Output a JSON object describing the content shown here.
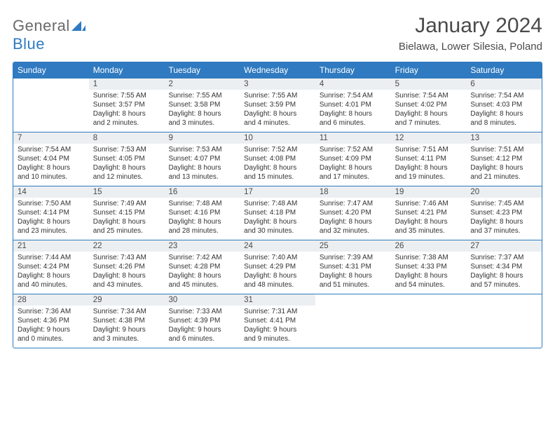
{
  "logo": {
    "word1": "General",
    "word2": "Blue"
  },
  "title": "January 2024",
  "location": "Bielawa, Lower Silesia, Poland",
  "colors": {
    "accent": "#2f7ac0",
    "daybar": "#eceff1",
    "text": "#333333",
    "title": "#4a4a4a",
    "bg": "#ffffff"
  },
  "dow": [
    "Sunday",
    "Monday",
    "Tuesday",
    "Wednesday",
    "Thursday",
    "Friday",
    "Saturday"
  ],
  "weeks": [
    [
      {
        "n": "",
        "lines": [
          "",
          "",
          "",
          ""
        ]
      },
      {
        "n": "1",
        "lines": [
          "Sunrise: 7:55 AM",
          "Sunset: 3:57 PM",
          "Daylight: 8 hours",
          "and 2 minutes."
        ]
      },
      {
        "n": "2",
        "lines": [
          "Sunrise: 7:55 AM",
          "Sunset: 3:58 PM",
          "Daylight: 8 hours",
          "and 3 minutes."
        ]
      },
      {
        "n": "3",
        "lines": [
          "Sunrise: 7:55 AM",
          "Sunset: 3:59 PM",
          "Daylight: 8 hours",
          "and 4 minutes."
        ]
      },
      {
        "n": "4",
        "lines": [
          "Sunrise: 7:54 AM",
          "Sunset: 4:01 PM",
          "Daylight: 8 hours",
          "and 6 minutes."
        ]
      },
      {
        "n": "5",
        "lines": [
          "Sunrise: 7:54 AM",
          "Sunset: 4:02 PM",
          "Daylight: 8 hours",
          "and 7 minutes."
        ]
      },
      {
        "n": "6",
        "lines": [
          "Sunrise: 7:54 AM",
          "Sunset: 4:03 PM",
          "Daylight: 8 hours",
          "and 8 minutes."
        ]
      }
    ],
    [
      {
        "n": "7",
        "lines": [
          "Sunrise: 7:54 AM",
          "Sunset: 4:04 PM",
          "Daylight: 8 hours",
          "and 10 minutes."
        ]
      },
      {
        "n": "8",
        "lines": [
          "Sunrise: 7:53 AM",
          "Sunset: 4:05 PM",
          "Daylight: 8 hours",
          "and 12 minutes."
        ]
      },
      {
        "n": "9",
        "lines": [
          "Sunrise: 7:53 AM",
          "Sunset: 4:07 PM",
          "Daylight: 8 hours",
          "and 13 minutes."
        ]
      },
      {
        "n": "10",
        "lines": [
          "Sunrise: 7:52 AM",
          "Sunset: 4:08 PM",
          "Daylight: 8 hours",
          "and 15 minutes."
        ]
      },
      {
        "n": "11",
        "lines": [
          "Sunrise: 7:52 AM",
          "Sunset: 4:09 PM",
          "Daylight: 8 hours",
          "and 17 minutes."
        ]
      },
      {
        "n": "12",
        "lines": [
          "Sunrise: 7:51 AM",
          "Sunset: 4:11 PM",
          "Daylight: 8 hours",
          "and 19 minutes."
        ]
      },
      {
        "n": "13",
        "lines": [
          "Sunrise: 7:51 AM",
          "Sunset: 4:12 PM",
          "Daylight: 8 hours",
          "and 21 minutes."
        ]
      }
    ],
    [
      {
        "n": "14",
        "lines": [
          "Sunrise: 7:50 AM",
          "Sunset: 4:14 PM",
          "Daylight: 8 hours",
          "and 23 minutes."
        ]
      },
      {
        "n": "15",
        "lines": [
          "Sunrise: 7:49 AM",
          "Sunset: 4:15 PM",
          "Daylight: 8 hours",
          "and 25 minutes."
        ]
      },
      {
        "n": "16",
        "lines": [
          "Sunrise: 7:48 AM",
          "Sunset: 4:16 PM",
          "Daylight: 8 hours",
          "and 28 minutes."
        ]
      },
      {
        "n": "17",
        "lines": [
          "Sunrise: 7:48 AM",
          "Sunset: 4:18 PM",
          "Daylight: 8 hours",
          "and 30 minutes."
        ]
      },
      {
        "n": "18",
        "lines": [
          "Sunrise: 7:47 AM",
          "Sunset: 4:20 PM",
          "Daylight: 8 hours",
          "and 32 minutes."
        ]
      },
      {
        "n": "19",
        "lines": [
          "Sunrise: 7:46 AM",
          "Sunset: 4:21 PM",
          "Daylight: 8 hours",
          "and 35 minutes."
        ]
      },
      {
        "n": "20",
        "lines": [
          "Sunrise: 7:45 AM",
          "Sunset: 4:23 PM",
          "Daylight: 8 hours",
          "and 37 minutes."
        ]
      }
    ],
    [
      {
        "n": "21",
        "lines": [
          "Sunrise: 7:44 AM",
          "Sunset: 4:24 PM",
          "Daylight: 8 hours",
          "and 40 minutes."
        ]
      },
      {
        "n": "22",
        "lines": [
          "Sunrise: 7:43 AM",
          "Sunset: 4:26 PM",
          "Daylight: 8 hours",
          "and 43 minutes."
        ]
      },
      {
        "n": "23",
        "lines": [
          "Sunrise: 7:42 AM",
          "Sunset: 4:28 PM",
          "Daylight: 8 hours",
          "and 45 minutes."
        ]
      },
      {
        "n": "24",
        "lines": [
          "Sunrise: 7:40 AM",
          "Sunset: 4:29 PM",
          "Daylight: 8 hours",
          "and 48 minutes."
        ]
      },
      {
        "n": "25",
        "lines": [
          "Sunrise: 7:39 AM",
          "Sunset: 4:31 PM",
          "Daylight: 8 hours",
          "and 51 minutes."
        ]
      },
      {
        "n": "26",
        "lines": [
          "Sunrise: 7:38 AM",
          "Sunset: 4:33 PM",
          "Daylight: 8 hours",
          "and 54 minutes."
        ]
      },
      {
        "n": "27",
        "lines": [
          "Sunrise: 7:37 AM",
          "Sunset: 4:34 PM",
          "Daylight: 8 hours",
          "and 57 minutes."
        ]
      }
    ],
    [
      {
        "n": "28",
        "lines": [
          "Sunrise: 7:36 AM",
          "Sunset: 4:36 PM",
          "Daylight: 9 hours",
          "and 0 minutes."
        ]
      },
      {
        "n": "29",
        "lines": [
          "Sunrise: 7:34 AM",
          "Sunset: 4:38 PM",
          "Daylight: 9 hours",
          "and 3 minutes."
        ]
      },
      {
        "n": "30",
        "lines": [
          "Sunrise: 7:33 AM",
          "Sunset: 4:39 PM",
          "Daylight: 9 hours",
          "and 6 minutes."
        ]
      },
      {
        "n": "31",
        "lines": [
          "Sunrise: 7:31 AM",
          "Sunset: 4:41 PM",
          "Daylight: 9 hours",
          "and 9 minutes."
        ]
      },
      {
        "n": "",
        "lines": [
          "",
          "",
          "",
          ""
        ]
      },
      {
        "n": "",
        "lines": [
          "",
          "",
          "",
          ""
        ]
      },
      {
        "n": "",
        "lines": [
          "",
          "",
          "",
          ""
        ]
      }
    ]
  ]
}
